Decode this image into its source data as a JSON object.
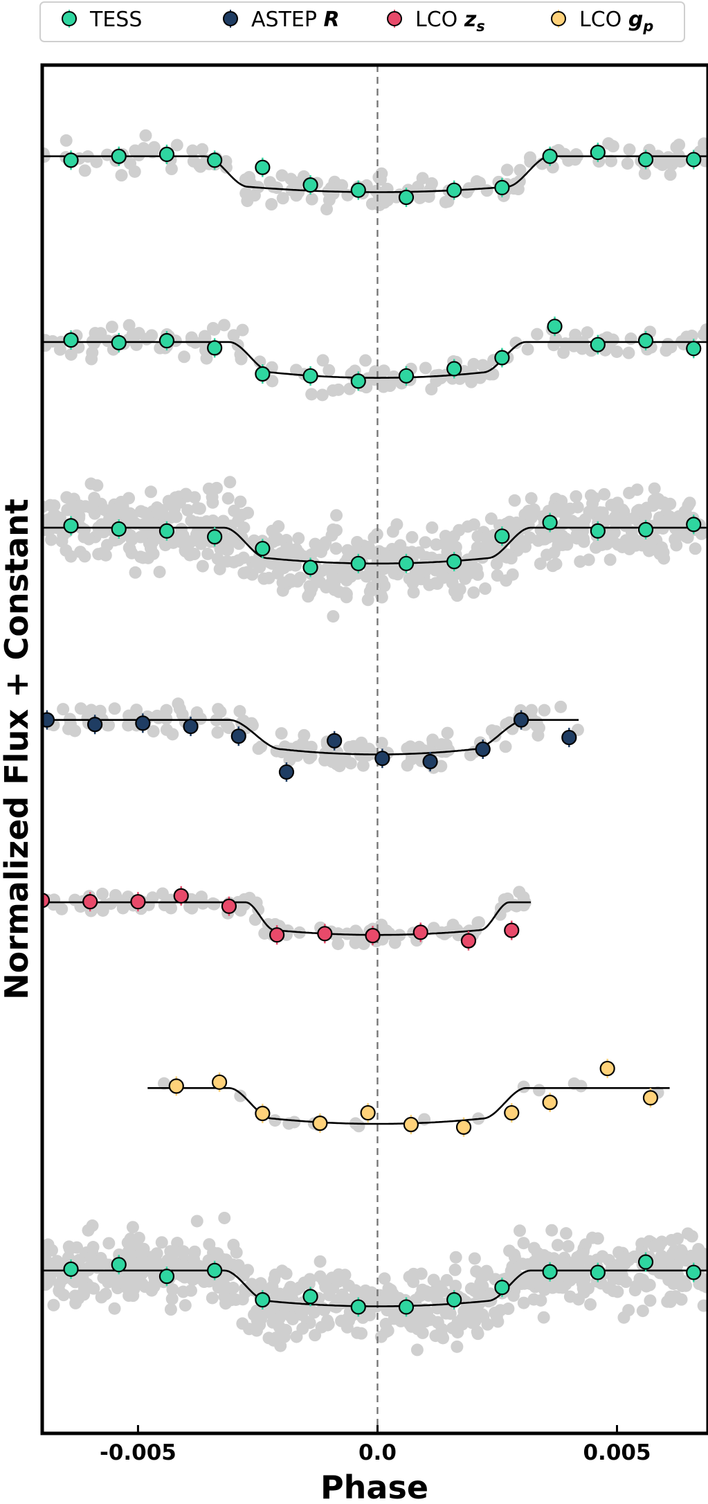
{
  "chart_data": {
    "type": "scatter",
    "xlabel": "Phase",
    "ylabel": "Normalized Flux + Constant",
    "xlim": [
      -0.007,
      0.0069
    ],
    "x_ticks": [
      {
        "value": -0.005,
        "label": "-0.005"
      },
      {
        "value": 0.0,
        "label": "0.0"
      },
      {
        "value": 0.005,
        "label": "0.005"
      }
    ],
    "reference_line": {
      "x": 0.0,
      "style": "dashed",
      "color": "#777777"
    },
    "legend": {
      "placement": "top",
      "entries": [
        {
          "prefix": "TESS",
          "math": "",
          "sub": "",
          "color": "#2fd6a0"
        },
        {
          "prefix": "ASTEP ",
          "math": "R",
          "sub": "",
          "color": "#1f3d63"
        },
        {
          "prefix": "LCO ",
          "math": "z",
          "sub": "s",
          "color": "#e84a6a"
        },
        {
          "prefix": "LCO ",
          "math": "g",
          "sub": "p",
          "color": "#ffd27a"
        }
      ]
    },
    "raw_color": "#cfcfcf",
    "panels": [
      {
        "instrument": "TESS",
        "color": "#2fd6a0",
        "baseline": 0,
        "depth": 0.055,
        "t14": 0.0072,
        "tau": 0.0009,
        "xrange": [
          -0.007,
          0.0069
        ],
        "raw": {
          "count": 160,
          "scatter": 0.03,
          "seed": 11
        },
        "binned": [
          {
            "x": -0.0064,
            "y": 0.006
          },
          {
            "x": -0.0054,
            "y": 0.0
          },
          {
            "x": -0.0044,
            "y": -0.003
          },
          {
            "x": -0.0034,
            "y": 0.006
          },
          {
            "x": -0.0024,
            "y": 0.017
          },
          {
            "x": -0.0014,
            "y": 0.044
          },
          {
            "x": -0.0004,
            "y": 0.052
          },
          {
            "x": 0.0006,
            "y": 0.063
          },
          {
            "x": 0.0016,
            "y": 0.052
          },
          {
            "x": 0.0026,
            "y": 0.048
          },
          {
            "x": 0.0036,
            "y": 0.0
          },
          {
            "x": 0.0046,
            "y": -0.006
          },
          {
            "x": 0.0056,
            "y": 0.005
          },
          {
            "x": 0.0066,
            "y": 0.005
          }
        ]
      },
      {
        "instrument": "TESS",
        "color": "#2fd6a0",
        "baseline": 0.285,
        "depth": 0.055,
        "t14": 0.0062,
        "tau": 0.0009,
        "xrange": [
          -0.007,
          0.0069
        ],
        "raw": {
          "count": 160,
          "scatter": 0.03,
          "seed": 23
        },
        "binned": [
          {
            "x": -0.0064,
            "y": 0.282
          },
          {
            "x": -0.0054,
            "y": 0.286
          },
          {
            "x": -0.0044,
            "y": 0.283
          },
          {
            "x": -0.0034,
            "y": 0.294
          },
          {
            "x": -0.0024,
            "y": 0.334
          },
          {
            "x": -0.0014,
            "y": 0.337
          },
          {
            "x": -0.0004,
            "y": 0.345
          },
          {
            "x": 0.0006,
            "y": 0.337
          },
          {
            "x": 0.0016,
            "y": 0.326
          },
          {
            "x": 0.0026,
            "y": 0.309
          },
          {
            "x": 0.0037,
            "y": 0.261
          },
          {
            "x": 0.0046,
            "y": 0.289
          },
          {
            "x": 0.0056,
            "y": 0.283
          },
          {
            "x": 0.0066,
            "y": 0.295
          }
        ]
      },
      {
        "instrument": "TESS",
        "color": "#2fd6a0",
        "baseline": 0.57,
        "depth": 0.055,
        "t14": 0.0064,
        "tau": 0.0009,
        "xrange": [
          -0.007,
          0.0069
        ],
        "raw": {
          "count": 720,
          "scatter": 0.07,
          "seed": 37
        },
        "binned": [
          {
            "x": -0.0064,
            "y": 0.567
          },
          {
            "x": -0.0054,
            "y": 0.572
          },
          {
            "x": -0.0044,
            "y": 0.575
          },
          {
            "x": -0.0034,
            "y": 0.584
          },
          {
            "x": -0.0024,
            "y": 0.602
          },
          {
            "x": -0.0014,
            "y": 0.631
          },
          {
            "x": -0.0004,
            "y": 0.625
          },
          {
            "x": 0.0006,
            "y": 0.625
          },
          {
            "x": 0.0016,
            "y": 0.622
          },
          {
            "x": 0.0026,
            "y": 0.583
          },
          {
            "x": 0.0036,
            "y": 0.562
          },
          {
            "x": 0.0046,
            "y": 0.575
          },
          {
            "x": 0.0056,
            "y": 0.573
          },
          {
            "x": 0.0066,
            "y": 0.565
          }
        ]
      },
      {
        "instrument": "ASTEP R",
        "color": "#1f3d63",
        "baseline": 0.865,
        "depth": 0.053,
        "t14": 0.0062,
        "tau": 0.0011,
        "xrange": [
          -0.007,
          0.0042
        ],
        "raw": {
          "count": 150,
          "scatter": 0.03,
          "seed": 53
        },
        "binned": [
          {
            "x": -0.0069,
            "y": 0.865
          },
          {
            "x": -0.0059,
            "y": 0.872
          },
          {
            "x": -0.0049,
            "y": 0.87
          },
          {
            "x": -0.0039,
            "y": 0.875
          },
          {
            "x": -0.0029,
            "y": 0.89
          },
          {
            "x": -0.0019,
            "y": 0.945
          },
          {
            "x": -0.0009,
            "y": 0.897
          },
          {
            "x": 0.0001,
            "y": 0.924
          },
          {
            "x": 0.0011,
            "y": 0.929
          },
          {
            "x": 0.0022,
            "y": 0.91
          },
          {
            "x": 0.003,
            "y": 0.865
          },
          {
            "x": 0.004,
            "y": 0.892
          }
        ]
      },
      {
        "instrument": "LCO zs",
        "color": "#e84a6a",
        "baseline": 1.145,
        "depth": 0.05,
        "t14": 0.0055,
        "tau": 0.0006,
        "xrange": [
          -0.007,
          0.0032
        ],
        "raw": {
          "count": 130,
          "scatter": 0.02,
          "seed": 71
        },
        "binned": [
          {
            "x": -0.007,
            "y": 1.142
          },
          {
            "x": -0.006,
            "y": 1.144
          },
          {
            "x": -0.005,
            "y": 1.144
          },
          {
            "x": -0.0041,
            "y": 1.135
          },
          {
            "x": -0.0031,
            "y": 1.151
          },
          {
            "x": -0.0021,
            "y": 1.195
          },
          {
            "x": -0.0011,
            "y": 1.193
          },
          {
            "x": -0.0001,
            "y": 1.196
          },
          {
            "x": 0.0009,
            "y": 1.191
          },
          {
            "x": 0.0019,
            "y": 1.204
          },
          {
            "x": 0.0028,
            "y": 1.188
          }
        ]
      },
      {
        "instrument": "LCO gp",
        "color": "#ffd27a",
        "baseline": 1.43,
        "depth": 0.055,
        "t14": 0.0062,
        "tau": 0.0009,
        "xrange": [
          -0.0048,
          0.0061
        ],
        "raw": {
          "count": 16,
          "scatter": 0.015,
          "seed": 89
        },
        "binned": [
          {
            "x": -0.0042,
            "y": 1.427
          },
          {
            "x": -0.0033,
            "y": 1.421
          },
          {
            "x": -0.0024,
            "y": 1.469
          },
          {
            "x": -0.0012,
            "y": 1.484
          },
          {
            "x": -0.0002,
            "y": 1.468
          },
          {
            "x": 0.0007,
            "y": 1.486
          },
          {
            "x": 0.0018,
            "y": 1.49
          },
          {
            "x": 0.0028,
            "y": 1.468
          },
          {
            "x": 0.0036,
            "y": 1.452
          },
          {
            "x": 0.0048,
            "y": 1.4
          },
          {
            "x": 0.0057,
            "y": 1.445
          }
        ]
      },
      {
        "instrument": "TESS",
        "color": "#2fd6a0",
        "baseline": 1.71,
        "depth": 0.055,
        "t14": 0.0064,
        "tau": 0.0009,
        "xrange": [
          -0.007,
          0.0069
        ],
        "raw": {
          "count": 720,
          "scatter": 0.07,
          "seed": 97
        },
        "binned": [
          {
            "x": -0.0064,
            "y": 1.708
          },
          {
            "x": -0.0054,
            "y": 1.701
          },
          {
            "x": -0.0044,
            "y": 1.719
          },
          {
            "x": -0.0034,
            "y": 1.71
          },
          {
            "x": -0.0024,
            "y": 1.755
          },
          {
            "x": -0.0014,
            "y": 1.75
          },
          {
            "x": -0.0004,
            "y": 1.766
          },
          {
            "x": 0.0006,
            "y": 1.766
          },
          {
            "x": 0.0016,
            "y": 1.755
          },
          {
            "x": 0.0026,
            "y": 1.736
          },
          {
            "x": 0.0036,
            "y": 1.712
          },
          {
            "x": 0.0046,
            "y": 1.713
          },
          {
            "x": 0.0056,
            "y": 1.697
          },
          {
            "x": 0.0066,
            "y": 1.713
          }
        ]
      }
    ]
  }
}
